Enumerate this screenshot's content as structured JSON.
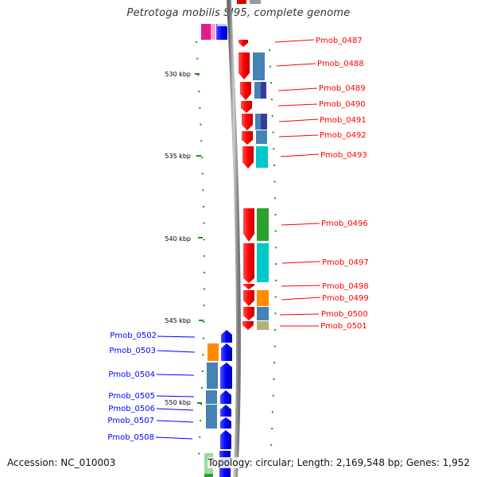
{
  "title": "Petrotoga mobilis SJ95, complete genome",
  "footer": {
    "accession": "Accession: NC_010003",
    "info": "Topology: circular; Length: 2,169,548 bp; Genes: 1,952"
  },
  "scale": {
    "ticks": [
      {
        "kbp": 530,
        "label": "530 kbp"
      },
      {
        "kbp": 535,
        "label": "535 kbp"
      },
      {
        "kbp": 540,
        "label": "540 kbp"
      },
      {
        "kbp": 545,
        "label": "545 kbp"
      },
      {
        "kbp": 550,
        "label": "550 kbp"
      }
    ]
  },
  "genes": {
    "forward": [
      {
        "id": "Pmob_0487",
        "color": "#dd0000"
      },
      {
        "id": "Pmob_0488",
        "color": "#dd0000"
      },
      {
        "id": "Pmob_0489",
        "color": "#dd0000"
      },
      {
        "id": "Pmob_0490",
        "color": "#dd0000"
      },
      {
        "id": "Pmob_0491",
        "color": "#dd0000"
      },
      {
        "id": "Pmob_0492",
        "color": "#dd0000"
      },
      {
        "id": "Pmob_0493",
        "color": "#dd0000"
      },
      {
        "id": "Pmob_0496",
        "color": "#dd0000"
      },
      {
        "id": "Pmob_0497",
        "color": "#dd0000"
      },
      {
        "id": "Pmob_0498",
        "color": "#dd0000"
      },
      {
        "id": "Pmob_0499",
        "color": "#dd0000"
      },
      {
        "id": "Pmob_0500",
        "color": "#dd0000"
      },
      {
        "id": "Pmob_0501",
        "color": "#dd0000"
      }
    ],
    "reverse": [
      {
        "id": "Pmob_0502",
        "color": "#0000cc"
      },
      {
        "id": "Pmob_0503",
        "color": "#0000cc"
      },
      {
        "id": "Pmob_0504",
        "color": "#0000cc"
      },
      {
        "id": "Pmob_0505",
        "color": "#0000cc"
      },
      {
        "id": "Pmob_0506",
        "color": "#0000cc"
      },
      {
        "id": "Pmob_0507",
        "color": "#0000cc"
      },
      {
        "id": "Pmob_0508",
        "color": "#0000cc"
      }
    ]
  },
  "colors": {
    "forward_strand": "#ff0000",
    "reverse_strand": "#0000ff",
    "backbone": "#999999",
    "tick": "#228b22",
    "cog_steelblue": "#4682b4",
    "cog_cyan": "#00c8c8",
    "cog_green": "#2ca02c",
    "cog_orange": "#ff8c00",
    "cog_khaki": "#b5b07a",
    "cog_navy": "#3a3a9a",
    "cog_magenta": "#e0208a"
  }
}
